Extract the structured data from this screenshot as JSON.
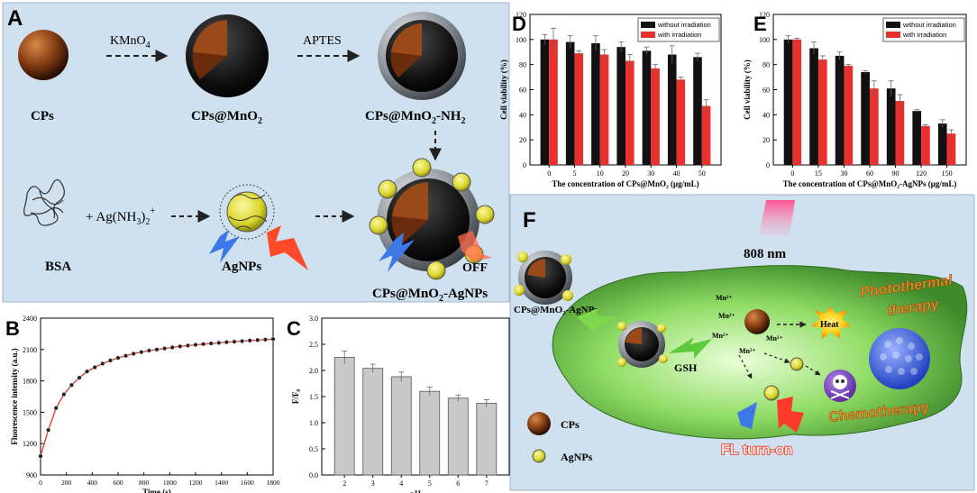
{
  "colors": {
    "panel_bg": "#cfe0ee",
    "bar_black": "#111111",
    "bar_red": "#e8312c",
    "bar_gray": "#c8c8c8",
    "curve_red": "#e8312c",
    "cell_green": "#7fcf5a",
    "cp_brown": "#8a3f14",
    "agnp_yellow": "#e6e23a",
    "beam_pink": "#f05a8a",
    "blue_bolt": "#3c78e6",
    "orange_text": "#f08a2a"
  },
  "panel_a": {
    "letter": "A",
    "step1_reagent": "KMnO",
    "step1_sub": "4",
    "step2_reagent": "APTES",
    "cps_label": "CPs",
    "cps_mno2_label": "CPs@MnO",
    "cps_mno2_sub": "2",
    "cps_mno2_nh2_pre": "CPs@MnO",
    "cps_mno2_nh2_sub": "2",
    "cps_mno2_nh2_post": "-NH",
    "cps_mno2_nh2_sub2": "2",
    "bsa_label": "BSA",
    "ag_plus": "+ Ag(NH",
    "ag_sub": "3",
    "ag_paren": ")",
    "ag_sub2": "2",
    "ag_sup": "+",
    "agnps_label": "AgNPs",
    "off_label": "OFF",
    "final_pre": "CPs@MnO",
    "final_sub": "2",
    "final_post": "-AgNPs"
  },
  "panel_f": {
    "letter": "F",
    "laser": "808 nm",
    "particle_label": "CPs@MnO₂-AgNPs",
    "gsh": "GSH",
    "mn_ion": "Mn²⁺",
    "heat": "Heat",
    "photothermal_1": "Photothermal",
    "photothermal_2": "therapy",
    "chemotherapy": "Chemotherapy",
    "fl_turn_on": "FL turn-on",
    "legend_cps": "CPs",
    "legend_agnps": "AgNPs"
  },
  "chart_data": [
    {
      "id": "D",
      "letter": "D",
      "type": "bar",
      "xlabel": "The concentration of CPs@MnO₂ (μg/mL)",
      "ylabel": "Cell viability (%)",
      "ylim": [
        0,
        120
      ],
      "yticks": [
        "0",
        "20",
        "40",
        "60",
        "80",
        "100",
        "120"
      ],
      "categories": [
        "0",
        "5",
        "10",
        "20",
        "30",
        "40",
        "50"
      ],
      "legend": [
        "without irradiation",
        "with irradiation"
      ],
      "legend_position": "top-right",
      "series": [
        {
          "name": "without irradiation",
          "values": [
            100,
            98,
            97,
            94,
            91,
            88,
            86
          ],
          "errors": [
            4,
            5,
            6,
            4,
            3,
            7,
            3
          ]
        },
        {
          "name": "with irradiation",
          "values": [
            100,
            89,
            88,
            83,
            77,
            68,
            47
          ],
          "errors": [
            9,
            2,
            4,
            5,
            3,
            2,
            5
          ]
        }
      ]
    },
    {
      "id": "E",
      "letter": "E",
      "type": "bar",
      "xlabel": "The concentration of CPs@MnO₂-AgNPs (μg/mL)",
      "ylabel": "Cell viability (%)",
      "ylim": [
        0,
        120
      ],
      "yticks": [
        "0",
        "20",
        "40",
        "60",
        "80",
        "100",
        "120"
      ],
      "categories": [
        "0",
        "15",
        "30",
        "60",
        "90",
        "120",
        "150"
      ],
      "legend": [
        "without irradiation",
        "with irradiation"
      ],
      "legend_position": "top-right",
      "series": [
        {
          "name": "without irradiation",
          "values": [
            100,
            93,
            87,
            74,
            61,
            43,
            33
          ],
          "errors": [
            3,
            5,
            3,
            1,
            6,
            1,
            3
          ]
        },
        {
          "name": "with irradiation",
          "values": [
            100,
            84,
            79,
            61,
            51,
            31,
            25
          ],
          "errors": [
            1,
            3,
            1,
            6,
            5,
            1,
            3
          ]
        }
      ]
    },
    {
      "id": "B",
      "letter": "B",
      "type": "line",
      "xlabel": "Time (s)",
      "ylabel": "Fluorescence intensity (a.u.)",
      "xlim": [
        0,
        1800
      ],
      "ylim": [
        900,
        2400
      ],
      "xticks": [
        "0",
        "200",
        "400",
        "600",
        "800",
        "1000",
        "1200",
        "1400",
        "1600",
        "1800"
      ],
      "yticks": [
        "900",
        "1200",
        "1500",
        "1800",
        "2100",
        "2400"
      ],
      "x": [
        0,
        60,
        120,
        180,
        240,
        300,
        360,
        420,
        480,
        540,
        600,
        660,
        720,
        780,
        840,
        900,
        960,
        1020,
        1080,
        1140,
        1200,
        1260,
        1320,
        1380,
        1440,
        1500,
        1560,
        1620,
        1680,
        1740,
        1800
      ],
      "y": [
        1080,
        1330,
        1540,
        1670,
        1760,
        1830,
        1890,
        1930,
        1965,
        1995,
        2020,
        2040,
        2060,
        2075,
        2090,
        2100,
        2110,
        2120,
        2130,
        2138,
        2145,
        2152,
        2158,
        2164,
        2170,
        2175,
        2180,
        2186,
        2190,
        2195,
        2200
      ]
    },
    {
      "id": "C",
      "letter": "C",
      "type": "bar",
      "xlabel": "pH",
      "ylabel": "F/F₀",
      "ylim": [
        0.0,
        3.0
      ],
      "yticks": [
        "0.0",
        "0.5",
        "1.0",
        "1.5",
        "2.0",
        "2.5",
        "3.0"
      ],
      "categories": [
        "2",
        "3",
        "4",
        "5",
        "6",
        "7"
      ],
      "series": [
        {
          "name": "F/F0",
          "values": [
            2.25,
            2.04,
            1.88,
            1.6,
            1.47,
            1.37
          ],
          "errors": [
            0.12,
            0.08,
            0.09,
            0.08,
            0.06,
            0.07
          ]
        }
      ]
    }
  ]
}
